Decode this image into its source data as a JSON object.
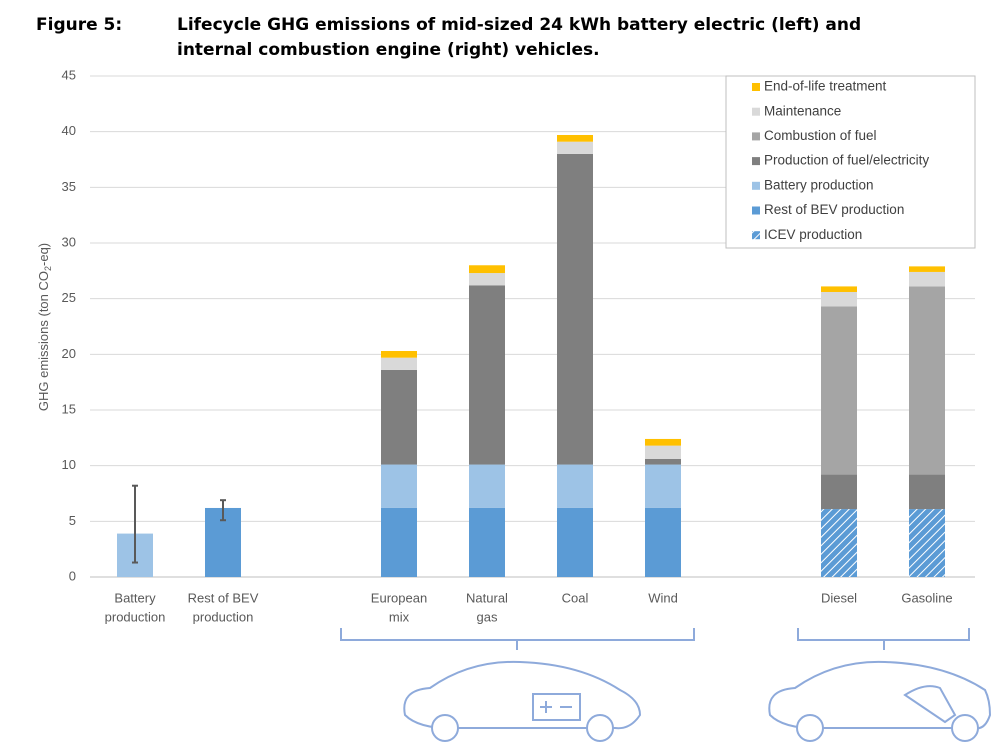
{
  "chart_data": {
    "type": "stacked_bar",
    "title_label": "Figure 5:",
    "title": [
      "Lifecycle GHG emissions of mid-sized 24 kWh battery electric (left) and",
      "internal combustion engine (right) vehicles."
    ],
    "ylabel": [
      "GHG emissions (ton CO",
      "2",
      "-eq)"
    ],
    "categories": [
      [
        "Battery",
        "production"
      ],
      [
        "Rest of BEV",
        "production"
      ],
      null,
      [
        "European",
        "mix"
      ],
      [
        "Natural",
        "gas"
      ],
      [
        "Coal"
      ],
      [
        "Wind"
      ],
      null,
      [
        "Diesel"
      ],
      [
        "Gasoline"
      ]
    ],
    "series": [
      {
        "name": "ICEV production",
        "color": "#5b9bd5",
        "hatch": true,
        "values": [
          null,
          null,
          null,
          null,
          null,
          null,
          null,
          null,
          6.1,
          6.1
        ]
      },
      {
        "name": "Rest of BEV production",
        "color": "#5b9bd5",
        "values": [
          null,
          6.2,
          null,
          6.2,
          6.2,
          6.2,
          6.2,
          null,
          null,
          null
        ]
      },
      {
        "name": "Battery production",
        "color": "#9dc3e6",
        "values": [
          3.9,
          null,
          null,
          3.9,
          3.9,
          3.9,
          3.9,
          null,
          null,
          null
        ]
      },
      {
        "name": "Production of fuel/electricity",
        "color": "#7f7f7f",
        "values": [
          null,
          null,
          null,
          8.5,
          16.1,
          27.9,
          0.5,
          null,
          3.1,
          3.1
        ]
      },
      {
        "name": "Combustion of fuel",
        "color": "#a5a5a5",
        "values": [
          null,
          null,
          null,
          null,
          null,
          null,
          null,
          null,
          15.1,
          16.9
        ]
      },
      {
        "name": "Maintenance",
        "color": "#d9d9d9",
        "values": [
          null,
          null,
          null,
          1.1,
          1.1,
          1.1,
          1.2,
          null,
          1.3,
          1.3
        ]
      },
      {
        "name": "End-of-life treatment",
        "color": "#ffc000",
        "values": [
          null,
          null,
          null,
          0.6,
          0.7,
          0.6,
          0.6,
          null,
          0.5,
          0.5
        ]
      }
    ],
    "ranges": [
      {
        "index": 0,
        "low": 1.3,
        "high": 8.2
      },
      {
        "index": 1,
        "low": 5.1,
        "high": 6.9
      }
    ],
    "ylim": [
      0,
      45
    ],
    "yticks": [
      0,
      5,
      10,
      15,
      20,
      25,
      30,
      35,
      40,
      45
    ],
    "grid": true,
    "legend": "upper right"
  }
}
